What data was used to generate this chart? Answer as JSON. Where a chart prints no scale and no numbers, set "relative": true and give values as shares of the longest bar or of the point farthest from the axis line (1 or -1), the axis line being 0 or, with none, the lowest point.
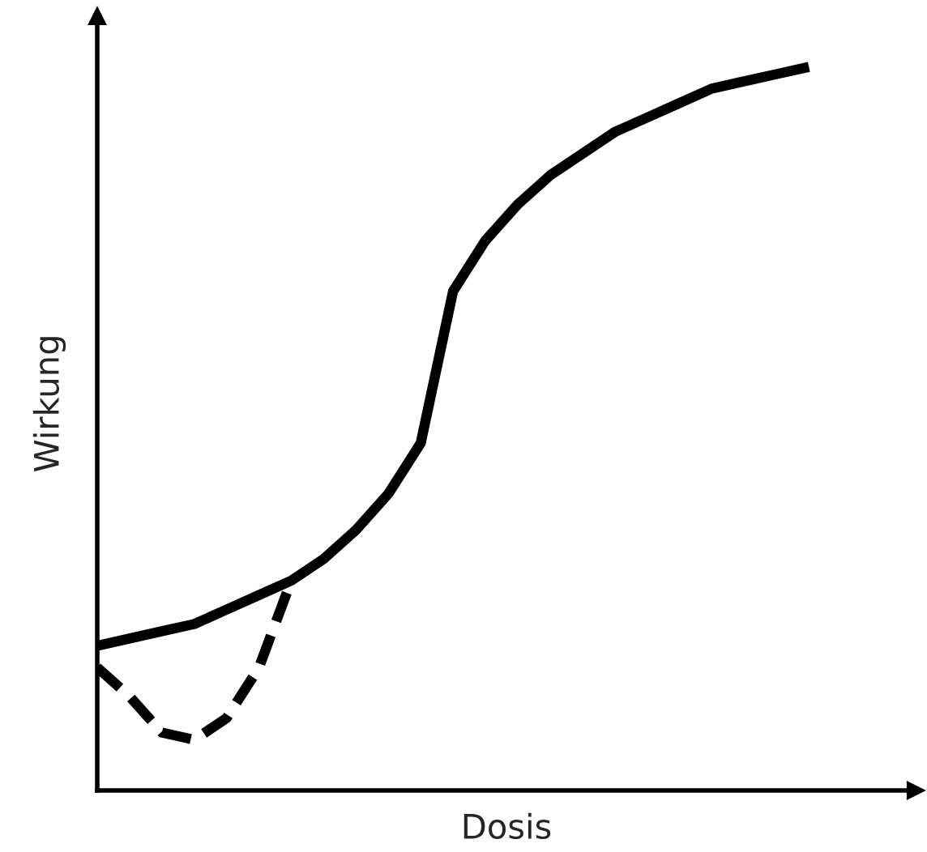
{
  "chart_data": {
    "type": "line",
    "relative": true,
    "xlabel": "Dosis",
    "ylabel": "Wirkung",
    "categories": [
      null,
      null,
      null,
      null,
      null,
      null,
      null,
      null,
      null,
      null,
      null,
      null,
      null,
      null,
      null,
      null,
      null,
      null,
      null,
      null,
      null,
      null,
      null
    ],
    "series": [
      {
        "color": "#000000",
        "line_style": "solid",
        "values": [
          0.2,
          0.21,
          0.22,
          0.23,
          0.25,
          0.27,
          0.29,
          0.32,
          0.36,
          0.41,
          0.48,
          0.69,
          0.76,
          0.81,
          0.85,
          0.88,
          0.91,
          0.93,
          0.95,
          0.97,
          0.98,
          0.99,
          1.0
        ]
      },
      {
        "color": "#000000",
        "line_style": "dashed",
        "values": [
          0.17,
          0.13,
          0.08,
          0.07,
          0.1,
          0.17,
          0.29,
          null,
          null,
          null,
          null,
          null,
          null,
          null,
          null,
          null,
          null,
          null,
          null,
          null,
          null,
          null,
          null
        ]
      }
    ],
    "grid": false,
    "legend": false,
    "tick_labels": false
  }
}
